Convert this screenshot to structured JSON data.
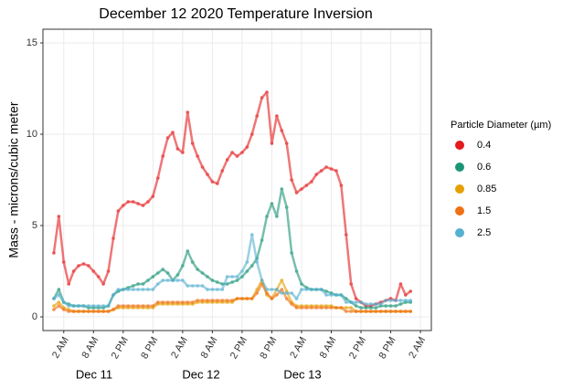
{
  "chart_data": {
    "type": "scatter",
    "title": "December 12 2020 Temperature Inversion",
    "y_label": "Mass - microns/cubic meter",
    "legend_title": "Particle Diameter (µm)",
    "legend": "right",
    "grid": true,
    "day_labels": [
      "Dec 11",
      "Dec 12",
      "Dec 13"
    ],
    "xlim": [
      -2.2,
      76.2
    ],
    "xticks": [
      {
        "value": 2,
        "label": "2 AM"
      },
      {
        "value": 8,
        "label": "8 AM"
      },
      {
        "value": 14,
        "label": "2 PM"
      },
      {
        "value": 20,
        "label": "8 PM"
      },
      {
        "value": 26,
        "label": "2 AM"
      },
      {
        "value": 32,
        "label": "8 AM"
      },
      {
        "value": 38,
        "label": "2 PM"
      },
      {
        "value": 44,
        "label": "8 PM"
      },
      {
        "value": 50,
        "label": "2 AM"
      },
      {
        "value": 56,
        "label": "8 AM"
      },
      {
        "value": 62,
        "label": "2 PM"
      },
      {
        "value": 68,
        "label": "8 PM"
      },
      {
        "value": 74,
        "label": "2 AM"
      }
    ],
    "ylim": [
      -0.75,
      15.75
    ],
    "yticks": [
      0,
      5,
      10,
      15
    ],
    "x": [
      0,
      1,
      2,
      3,
      4,
      5,
      6,
      7,
      8,
      9,
      10,
      11,
      12,
      13,
      14,
      15,
      16,
      17,
      18,
      19,
      20,
      21,
      22,
      23,
      24,
      25,
      26,
      27,
      28,
      29,
      30,
      31,
      32,
      33,
      34,
      35,
      36,
      37,
      38,
      39,
      40,
      41,
      42,
      43,
      44,
      45,
      46,
      47,
      48,
      49,
      50,
      51,
      52,
      53,
      54,
      55,
      56,
      57,
      58,
      59,
      60,
      61,
      62,
      63,
      64,
      65,
      66,
      67,
      68,
      69,
      70,
      71,
      72
    ],
    "series": [
      {
        "name": "0.4",
        "color": "#e41a1c",
        "values": [
          3.5,
          5.5,
          3.0,
          1.8,
          2.5,
          2.8,
          2.9,
          2.8,
          2.5,
          2.2,
          1.8,
          2.5,
          4.3,
          5.8,
          6.1,
          6.3,
          6.3,
          6.2,
          6.1,
          6.3,
          6.6,
          7.6,
          8.8,
          9.8,
          10.1,
          9.2,
          9.0,
          11.2,
          9.5,
          8.8,
          8.2,
          7.8,
          7.4,
          7.3,
          8.0,
          8.6,
          9.0,
          8.8,
          9.0,
          9.3,
          10.0,
          11.0,
          12.0,
          12.3,
          9.5,
          11.0,
          10.2,
          9.5,
          7.5,
          6.8,
          7.0,
          7.2,
          7.4,
          7.8,
          8.0,
          8.2,
          8.1,
          8.0,
          7.2,
          4.5,
          1.8,
          1.0,
          0.8,
          0.6,
          0.6,
          0.7,
          0.8,
          0.9,
          1.0,
          0.9,
          1.8,
          1.2,
          1.4
        ]
      },
      {
        "name": "0.6",
        "color": "#1b9577",
        "values": [
          1.0,
          1.5,
          0.8,
          0.7,
          0.6,
          0.6,
          0.6,
          0.5,
          0.5,
          0.5,
          0.5,
          0.6,
          1.2,
          1.4,
          1.5,
          1.6,
          1.7,
          1.8,
          1.8,
          2.0,
          2.2,
          2.4,
          2.6,
          2.4,
          2.0,
          2.3,
          2.8,
          3.6,
          3.0,
          2.6,
          2.4,
          2.2,
          2.0,
          1.9,
          1.8,
          1.8,
          1.9,
          2.0,
          2.2,
          2.5,
          2.8,
          3.2,
          4.2,
          5.5,
          6.2,
          5.5,
          7.0,
          6.0,
          3.5,
          2.5,
          1.8,
          1.6,
          1.5,
          1.5,
          1.5,
          1.4,
          1.3,
          1.2,
          1.2,
          1.0,
          0.8,
          0.6,
          0.5,
          0.5,
          0.5,
          0.5,
          0.6,
          0.6,
          0.6,
          0.6,
          0.7,
          0.8,
          0.8
        ]
      },
      {
        "name": "0.85",
        "color": "#e69f00",
        "values": [
          0.6,
          0.8,
          0.5,
          0.4,
          0.3,
          0.3,
          0.3,
          0.3,
          0.3,
          0.3,
          0.3,
          0.3,
          0.4,
          0.5,
          0.5,
          0.5,
          0.5,
          0.5,
          0.5,
          0.5,
          0.5,
          0.7,
          0.7,
          0.7,
          0.7,
          0.7,
          0.7,
          0.7,
          0.7,
          0.8,
          0.8,
          0.8,
          0.8,
          0.8,
          0.8,
          0.8,
          0.8,
          1.0,
          1.0,
          1.0,
          1.0,
          1.5,
          2.0,
          1.2,
          1.0,
          1.5,
          2.0,
          1.4,
          0.8,
          0.6,
          0.6,
          0.6,
          0.6,
          0.6,
          0.6,
          0.6,
          0.6,
          0.5,
          0.5,
          0.5,
          0.5,
          0.3,
          0.3,
          0.3,
          0.3,
          0.3,
          0.3,
          0.3,
          0.3,
          0.3,
          0.3,
          0.3,
          0.3
        ]
      },
      {
        "name": "1.5",
        "color": "#f07014",
        "values": [
          0.4,
          0.6,
          0.4,
          0.3,
          0.3,
          0.3,
          0.3,
          0.3,
          0.3,
          0.3,
          0.3,
          0.3,
          0.4,
          0.6,
          0.6,
          0.6,
          0.6,
          0.6,
          0.6,
          0.6,
          0.6,
          0.8,
          0.8,
          0.8,
          0.8,
          0.8,
          0.8,
          0.8,
          0.8,
          0.9,
          0.9,
          0.9,
          0.9,
          0.9,
          0.9,
          0.9,
          0.9,
          1.0,
          1.0,
          1.0,
          1.0,
          1.3,
          1.8,
          1.3,
          1.0,
          1.2,
          1.5,
          1.0,
          0.7,
          0.5,
          0.5,
          0.5,
          0.5,
          0.5,
          0.5,
          0.5,
          0.5,
          0.5,
          0.5,
          0.3,
          0.3,
          0.3,
          0.3,
          0.3,
          0.3,
          0.3,
          0.3,
          0.3,
          0.3,
          0.3,
          0.3,
          0.3,
          0.3
        ]
      },
      {
        "name": "2.5",
        "color": "#56b0d1",
        "values": [
          1.0,
          1.2,
          0.8,
          0.6,
          0.6,
          0.6,
          0.6,
          0.6,
          0.6,
          0.6,
          0.6,
          0.6,
          1.2,
          1.5,
          1.5,
          1.5,
          1.5,
          1.5,
          1.5,
          1.5,
          1.5,
          1.8,
          2.0,
          2.0,
          2.0,
          2.0,
          2.0,
          1.7,
          1.7,
          1.7,
          1.7,
          1.5,
          1.5,
          1.5,
          1.5,
          2.2,
          2.2,
          2.2,
          2.5,
          3.0,
          4.5,
          3.0,
          2.0,
          1.5,
          1.5,
          1.5,
          1.3,
          1.3,
          1.3,
          1.0,
          1.5,
          1.5,
          1.5,
          1.5,
          1.5,
          1.2,
          1.2,
          1.2,
          1.2,
          0.8,
          0.8,
          0.8,
          0.8,
          0.7,
          0.7,
          0.7,
          0.7,
          0.9,
          0.9,
          0.9,
          0.9,
          0.9,
          0.9
        ]
      }
    ]
  }
}
